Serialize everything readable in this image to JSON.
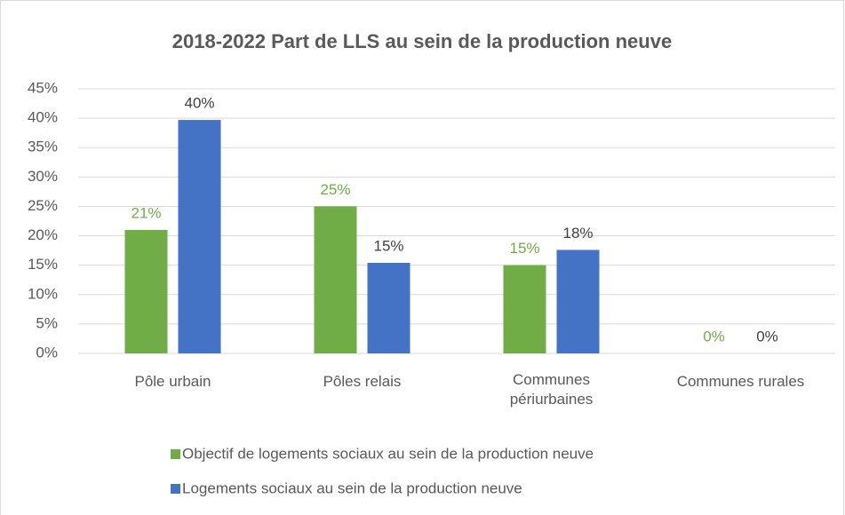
{
  "chart_data": {
    "type": "bar",
    "title": "2018-2022 Part de LLS au sein de la production neuve",
    "categories": [
      "Pôle urbain",
      "Pôles relais",
      "Communes périurbaines",
      "Communes rurales"
    ],
    "series": [
      {
        "name": "Objectif de logements sociaux au sein de la production neuve",
        "color": "#70ad47",
        "values": [
          21,
          25,
          15,
          0
        ],
        "value_labels": [
          "21%",
          "25%",
          "15%",
          "0%"
        ]
      },
      {
        "name": "Logements sociaux au sein de la production neuve",
        "color": "#4472c4",
        "values": [
          39.7,
          15.4,
          17.6,
          0
        ],
        "value_labels": [
          "40%",
          "15%",
          "18%",
          "0%"
        ]
      }
    ],
    "ylim": [
      0,
      45
    ],
    "yticks": [
      {
        "value": 0,
        "label": "0%"
      },
      {
        "value": 5,
        "label": "5%"
      },
      {
        "value": 10,
        "label": "10%"
      },
      {
        "value": 15,
        "label": "15%"
      },
      {
        "value": 20,
        "label": "20%"
      },
      {
        "value": 25,
        "label": "25%"
      },
      {
        "value": 30,
        "label": "30%"
      },
      {
        "value": 35,
        "label": "35%"
      },
      {
        "value": 40,
        "label": "40%"
      },
      {
        "value": 45,
        "label": "45%"
      }
    ],
    "grid": true,
    "legend": "bottom"
  }
}
